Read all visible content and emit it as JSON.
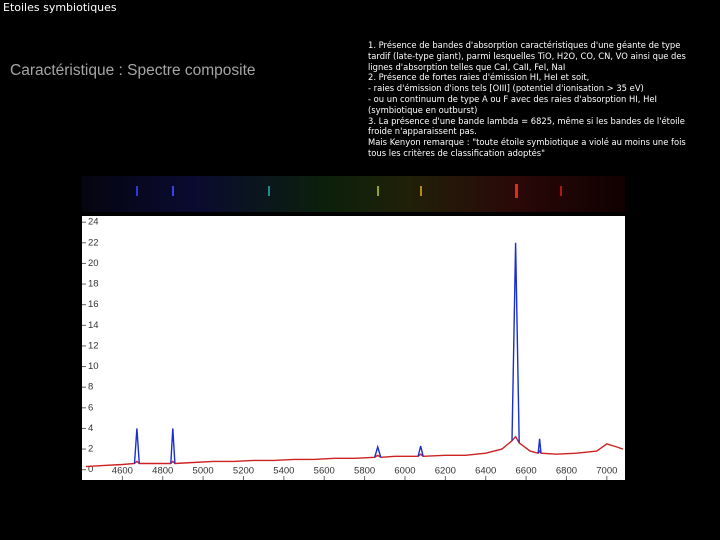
{
  "header": {
    "title": "Etoiles symbiotiques"
  },
  "heading": "Caractéristique : Spectre composite",
  "paragraph": [
    "1. Présence de bandes d'absorption caractéristiques d'une géante de type",
    "tardif (late-type giant), parmi lesquelles TiO, H2O, CO, CN, VO ainsi que des",
    "lignes d'absorption telles que CaI, CaII, FeI, NaI",
    "2. Présence de fortes raies d'émission HI, HeI et soit,",
    "- raies d'émission d'ions tels [OIII] (potentiel d'ionisation > 35 eV)",
    "- ou un continuum de type A ou F avec des raies d'absorption HI, HeI",
    "(symbiotique en outburst)",
    "3. La présence d'une bande lambda = 6825, même si les bandes de l'étoile",
    "froide n'apparaissent pas.",
    "Mais Kenyon remarque : \"toute étoile symbiotique a violé au moins une fois",
    "tous les critères de classification adoptés\""
  ],
  "chart_data": {
    "type": "line",
    "x": [
      4420,
      4500,
      4600,
      4660,
      4672,
      4684,
      4750,
      4840,
      4850,
      4860,
      4950,
      5050,
      5150,
      5250,
      5350,
      5450,
      5550,
      5650,
      5750,
      5850,
      5865,
      5880,
      5950,
      6065,
      6078,
      6090,
      6200,
      6300,
      6400,
      6480,
      6530,
      6548,
      6566,
      6620,
      6660,
      6667,
      6674,
      6750,
      6850,
      6950,
      7000,
      7050,
      7080
    ],
    "series": [
      {
        "color": "#cc2222",
        "values": [
          0.3,
          0.4,
          0.5,
          0.6,
          0.8,
          0.6,
          0.6,
          0.6,
          0.8,
          0.6,
          0.7,
          0.8,
          0.8,
          0.9,
          0.9,
          1.0,
          1.0,
          1.1,
          1.1,
          1.2,
          1.4,
          1.2,
          1.3,
          1.3,
          1.5,
          1.3,
          1.4,
          1.4,
          1.6,
          2.0,
          2.8,
          3.2,
          2.6,
          1.8,
          1.6,
          1.8,
          1.6,
          1.5,
          1.6,
          1.8,
          2.5,
          2.2,
          2.0
        ]
      },
      {
        "color": "#1a2fcc",
        "values": [
          null,
          null,
          null,
          0.6,
          4.0,
          0.6,
          null,
          0.6,
          4.0,
          0.6,
          null,
          null,
          null,
          null,
          null,
          null,
          null,
          null,
          null,
          1.2,
          2.2,
          1.2,
          null,
          1.3,
          2.3,
          1.3,
          null,
          null,
          null,
          null,
          2.8,
          22.0,
          2.6,
          null,
          1.6,
          3.0,
          1.6,
          null,
          null,
          null,
          null,
          null,
          null
        ]
      }
    ],
    "xlim": [
      4400,
      7090
    ],
    "ylim": [
      -1,
      24.6
    ],
    "xticks": [
      4600,
      4800,
      5000,
      5200,
      5400,
      5600,
      5800,
      6000,
      6200,
      6400,
      6600,
      6800,
      7000
    ],
    "yticks": [
      0,
      2,
      4,
      6,
      8,
      10,
      12,
      14,
      16,
      18,
      20,
      22,
      24
    ]
  }
}
